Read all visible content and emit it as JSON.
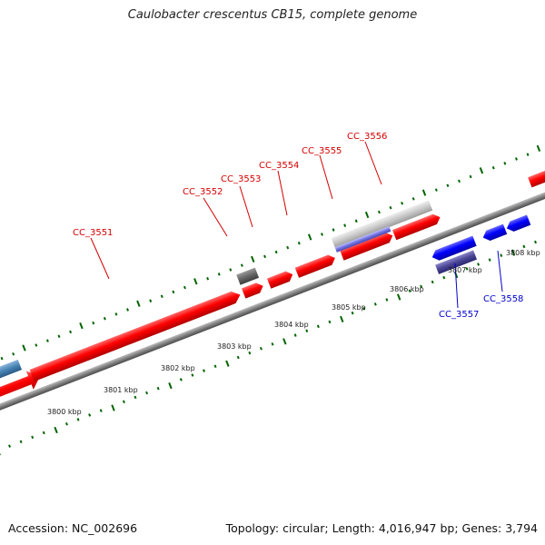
{
  "title": "Caulobacter crescentus CB15, complete genome",
  "footer": {
    "accession": "Accession: NC_002696",
    "summary": "Topology: circular; Length: 4,016,947 bp; Genes: 3,794"
  },
  "colors": {
    "forward_gene": "#ff0000",
    "reverse_gene": "#0000ff",
    "backbone": "#808080",
    "tick": "#006400",
    "forward_label": "#d40000",
    "reverse_label": "#0000cc"
  },
  "scale_labels": [
    "3800 kbp",
    "3801 kbp",
    "3802 kbp",
    "3803 kbp",
    "3804 kbp",
    "3805 kbp",
    "3806 kbp",
    "3807 kbp",
    "3808 kbp"
  ],
  "forward_labels": [
    "CC_3551",
    "CC_3552",
    "CC_3553",
    "CC_3554",
    "CC_3555",
    "CC_3556"
  ],
  "reverse_labels": [
    "CC_3557",
    "CC_3558"
  ]
}
